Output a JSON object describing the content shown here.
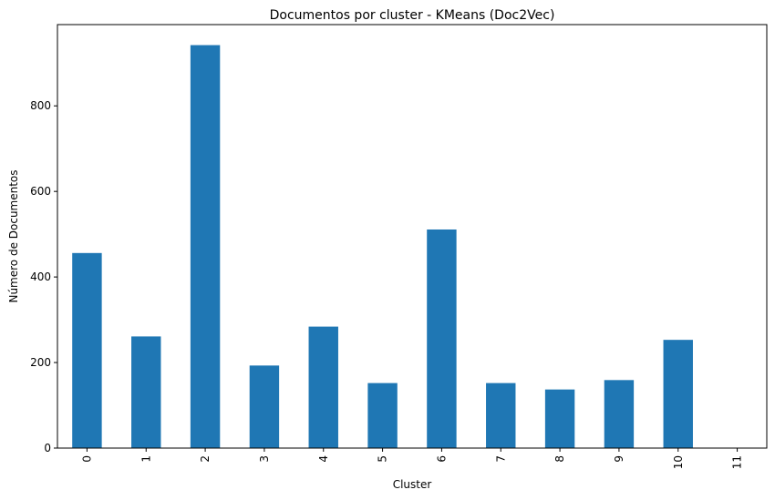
{
  "chart_data": {
    "type": "bar",
    "title": "Documentos por cluster - KMeans (Doc2Vec)",
    "xlabel": "Cluster",
    "ylabel": "Número de Documentos",
    "categories": [
      "0",
      "1",
      "2",
      "3",
      "4",
      "5",
      "6",
      "7",
      "8",
      "9",
      "10",
      "11"
    ],
    "values": [
      456,
      261,
      942,
      193,
      284,
      152,
      511,
      152,
      137,
      159,
      253,
      1
    ],
    "ylim": [
      0,
      990
    ],
    "yticks": [
      0,
      200,
      400,
      600,
      800
    ],
    "grid": false,
    "legend": "none",
    "bar_color": "#1f77b4"
  }
}
